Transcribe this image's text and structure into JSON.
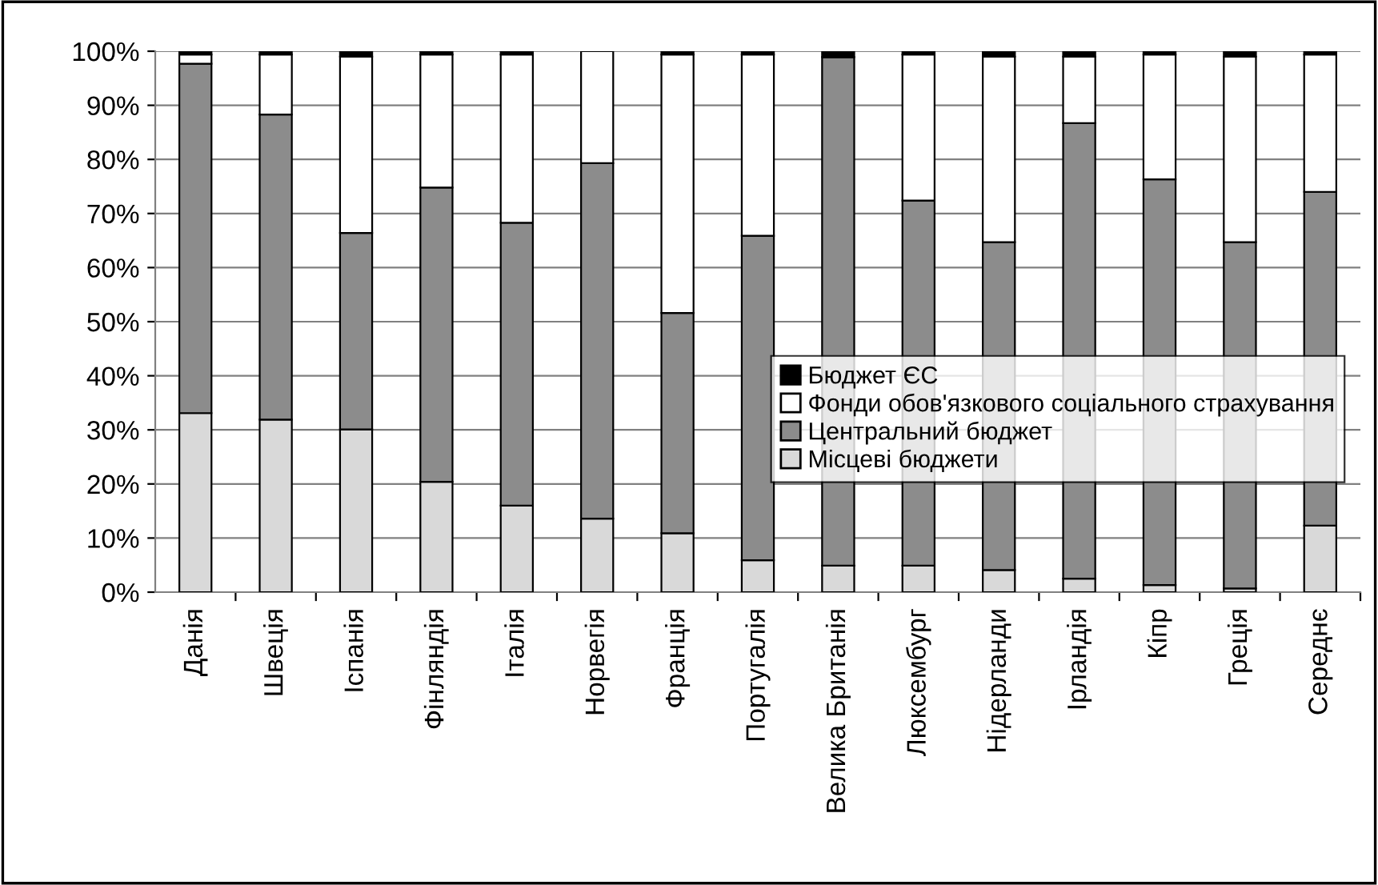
{
  "chart_data": {
    "type": "bar",
    "stacked": true,
    "categories": [
      "Данія",
      "Швеція",
      "Іспанія",
      "Фінляндія",
      "Італія",
      "Норвегія",
      "Франція",
      "Португалія",
      "Велика Британія",
      "Люксембург",
      "Нідерланди",
      "Ірландія",
      "Кіпр",
      "Греція",
      "Середнє"
    ],
    "series": [
      {
        "name": "Місцеві бюджети",
        "color": "#d9d9d9",
        "values": [
          33.1,
          31.9,
          30.1,
          20.4,
          16.0,
          13.6,
          10.9,
          5.9,
          4.9,
          4.9,
          4.1,
          2.5,
          1.3,
          0.7,
          12.3
        ]
      },
      {
        "name": "Центральний бюджет",
        "color": "#8c8c8c",
        "values": [
          64.6,
          56.4,
          36.3,
          54.4,
          52.3,
          65.7,
          40.7,
          60.0,
          94.0,
          67.5,
          60.6,
          84.2,
          75.0,
          64.0,
          61.7
        ]
      },
      {
        "name": "Фонди обов'язкового соціального страхування",
        "color": "#ffffff",
        "values": [
          1.7,
          11.1,
          32.6,
          24.6,
          31.1,
          20.7,
          47.8,
          33.5,
          0,
          27.0,
          34.3,
          12.3,
          23.1,
          34.3,
          25.4
        ]
      },
      {
        "name": "Бюджет ЄС",
        "color": "#000000",
        "values": [
          0.6,
          0.6,
          1.0,
          0.6,
          0.6,
          0,
          0.6,
          0.6,
          1.1,
          0.6,
          1.0,
          1.0,
          0.6,
          1.0,
          0.6
        ]
      }
    ],
    "ylim": [
      0,
      100
    ],
    "yticks": [
      {
        "value": 0,
        "label": "0%"
      },
      {
        "value": 10,
        "label": "10%"
      },
      {
        "value": 20,
        "label": "20%"
      },
      {
        "value": 30,
        "label": "30%"
      },
      {
        "value": 40,
        "label": "40%"
      },
      {
        "value": 50,
        "label": "50%"
      },
      {
        "value": 60,
        "label": "60%"
      },
      {
        "value": 70,
        "label": "70%"
      },
      {
        "value": 80,
        "label": "80%"
      },
      {
        "value": 90,
        "label": "90%"
      },
      {
        "value": 100,
        "label": "100%"
      }
    ],
    "grid": "y",
    "legend": "right"
  }
}
